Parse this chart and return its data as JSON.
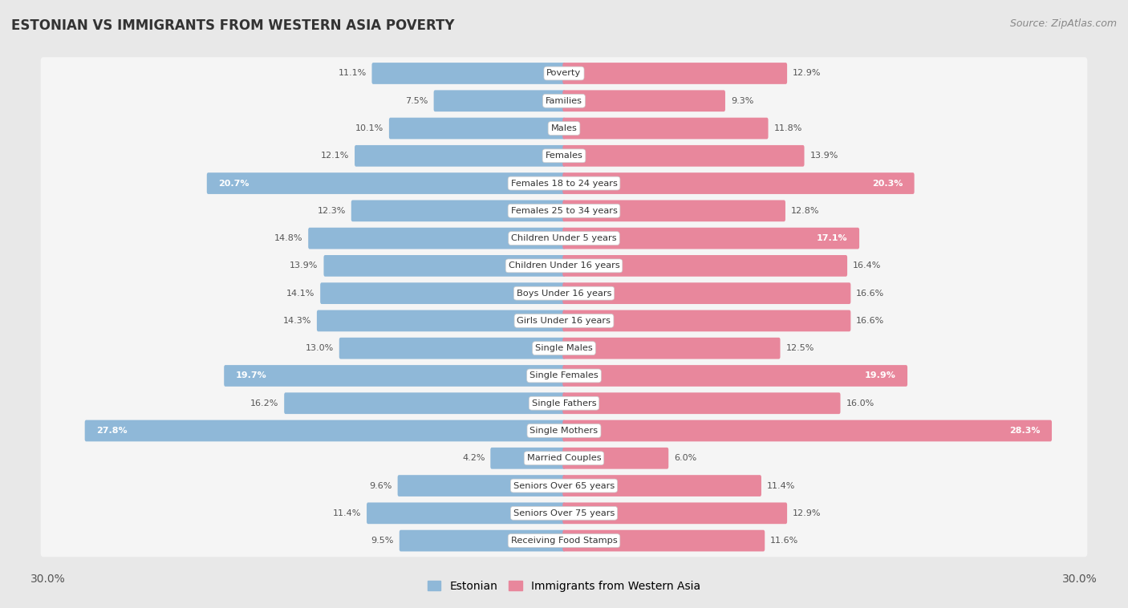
{
  "title": "ESTONIAN VS IMMIGRANTS FROM WESTERN ASIA POVERTY",
  "source": "Source: ZipAtlas.com",
  "categories": [
    "Poverty",
    "Families",
    "Males",
    "Females",
    "Females 18 to 24 years",
    "Females 25 to 34 years",
    "Children Under 5 years",
    "Children Under 16 years",
    "Boys Under 16 years",
    "Girls Under 16 years",
    "Single Males",
    "Single Females",
    "Single Fathers",
    "Single Mothers",
    "Married Couples",
    "Seniors Over 65 years",
    "Seniors Over 75 years",
    "Receiving Food Stamps"
  ],
  "estonian": [
    11.1,
    7.5,
    10.1,
    12.1,
    20.7,
    12.3,
    14.8,
    13.9,
    14.1,
    14.3,
    13.0,
    19.7,
    16.2,
    27.8,
    4.2,
    9.6,
    11.4,
    9.5
  ],
  "immigrants": [
    12.9,
    9.3,
    11.8,
    13.9,
    20.3,
    12.8,
    17.1,
    16.4,
    16.6,
    16.6,
    12.5,
    19.9,
    16.0,
    28.3,
    6.0,
    11.4,
    12.9,
    11.6
  ],
  "estonian_color": "#8fb8d8",
  "immigrant_color": "#e8879c",
  "background_color": "#e8e8e8",
  "row_bg_color": "#f5f5f5",
  "xlim": 30.0,
  "legend_estonian": "Estonian",
  "legend_immigrant": "Immigrants from Western Asia",
  "inside_label_threshold": 17.0
}
